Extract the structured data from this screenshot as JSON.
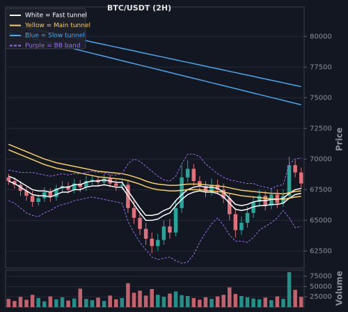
{
  "chart_data": {
    "type": "candlestick",
    "title": "BTC/USDT (2H)",
    "ylabel": "Price",
    "ylim": [
      61100,
      82400
    ],
    "yticks": [
      62500,
      65000,
      67500,
      70000,
      72500,
      75000,
      77500,
      80000
    ],
    "grid": true,
    "legend": "upper left",
    "up_color": "#26a69a",
    "down_color": "#e0707a",
    "open": [
      68500,
      68200,
      67900,
      67400,
      67000,
      66500,
      66800,
      67300,
      66900,
      67600,
      67800,
      67500,
      68000,
      67700,
      68200,
      68300,
      68100,
      68400,
      68000,
      67800,
      67900,
      66000,
      65200,
      64300,
      63500,
      62900,
      63400,
      64500,
      64000,
      66000,
      68500,
      69200,
      68200,
      67800,
      67300,
      67900,
      67500,
      66800,
      65500,
      64200,
      64800,
      65600,
      66500,
      67000,
      66200,
      67100,
      66400,
      67000,
      69500,
      68900
    ],
    "high": [
      68800,
      68500,
      68200,
      67700,
      67400,
      67100,
      67700,
      67600,
      67900,
      68200,
      68100,
      68400,
      68300,
      68600,
      68700,
      68600,
      68800,
      68700,
      68300,
      68300,
      68200,
      66600,
      65700,
      64800,
      64000,
      63900,
      65000,
      65100,
      66600,
      69500,
      69900,
      69600,
      68600,
      68200,
      68400,
      68300,
      68000,
      67200,
      66000,
      65300,
      66100,
      67000,
      67500,
      67400,
      67600,
      67500,
      67500,
      70200,
      69900,
      69300
    ],
    "low": [
      67900,
      67600,
      67000,
      66600,
      66100,
      66200,
      66500,
      66500,
      66600,
      67300,
      67200,
      67200,
      67300,
      67400,
      67900,
      67800,
      67800,
      67700,
      67400,
      67500,
      65600,
      64700,
      63800,
      63000,
      62300,
      62500,
      63000,
      63500,
      63700,
      65600,
      68100,
      67800,
      67400,
      66900,
      67000,
      67100,
      66400,
      65000,
      63600,
      63800,
      64400,
      65200,
      66100,
      65800,
      65900,
      66000,
      66100,
      66700,
      68500,
      67600
    ],
    "close": [
      68200,
      67900,
      67400,
      67000,
      66500,
      66800,
      67300,
      66900,
      67600,
      67800,
      67500,
      68000,
      67700,
      68200,
      68300,
      68100,
      68400,
      68000,
      67800,
      67900,
      66000,
      65200,
      64300,
      63500,
      62900,
      63400,
      64500,
      64000,
      66000,
      68500,
      69200,
      68200,
      67800,
      67300,
      67900,
      67500,
      66800,
      65500,
      64200,
      64800,
      65600,
      66500,
      67000,
      66200,
      67100,
      66400,
      67000,
      69500,
      68900,
      68000
    ],
    "series": [
      {
        "name": "White = Fast tunnel",
        "color": "#ffffff",
        "dash": false,
        "upper": [
          68600,
          68400,
          68100,
          67800,
          67500,
          67400,
          67400,
          67300,
          67500,
          67700,
          67700,
          67900,
          67900,
          68100,
          68200,
          68200,
          68300,
          68200,
          68100,
          68100,
          67400,
          66700,
          66000,
          65400,
          65400,
          65500,
          65800,
          66000,
          66600,
          67100,
          67500,
          67700,
          67800,
          67700,
          67700,
          67600,
          67300,
          66800,
          66300,
          66200,
          66300,
          66500,
          66600,
          66600,
          66700,
          66700,
          66800,
          67200,
          67500,
          67600
        ],
        "lower": [
          68200,
          68000,
          67700,
          67400,
          67100,
          67000,
          67000,
          66900,
          67100,
          67300,
          67300,
          67500,
          67500,
          67700,
          67800,
          67800,
          67900,
          67800,
          67700,
          67700,
          67000,
          66300,
          65600,
          65000,
          65000,
          65100,
          65400,
          65600,
          66200,
          66700,
          67100,
          67300,
          67400,
          67300,
          67300,
          67200,
          66900,
          66400,
          65900,
          65800,
          65900,
          66100,
          66200,
          66200,
          66300,
          66300,
          66400,
          66800,
          67100,
          67200
        ]
      },
      {
        "name": "Yellow = Main tunnel",
        "color": "#f5d060",
        "dash": false,
        "upper": [
          71200,
          71000,
          70800,
          70600,
          70400,
          70200,
          70000,
          69850,
          69700,
          69600,
          69500,
          69400,
          69300,
          69200,
          69100,
          69000,
          68950,
          68900,
          68850,
          68800,
          68700,
          68550,
          68400,
          68200,
          68050,
          67950,
          67900,
          67850,
          67850,
          67900,
          67950,
          67950,
          67950,
          67900,
          67850,
          67800,
          67750,
          67650,
          67550,
          67450,
          67400,
          67350,
          67300,
          67250,
          67200,
          67200,
          67150,
          67250,
          67350,
          67400
        ],
        "lower": [
          70750,
          70550,
          70350,
          70150,
          69950,
          69750,
          69550,
          69400,
          69250,
          69150,
          69050,
          68950,
          68850,
          68750,
          68650,
          68550,
          68500,
          68450,
          68400,
          68350,
          68250,
          68100,
          67950,
          67750,
          67600,
          67500,
          67450,
          67400,
          67400,
          67450,
          67500,
          67500,
          67500,
          67450,
          67400,
          67350,
          67300,
          67200,
          67100,
          67000,
          66950,
          66900,
          66850,
          66800,
          66750,
          66750,
          66700,
          66800,
          66900,
          66950
        ]
      },
      {
        "name": "Blue = Slow tunnel",
        "color": "#4aa8f0",
        "dash": false,
        "upper": [
          81000,
          80900,
          80790,
          80690,
          80580,
          80480,
          80380,
          80270,
          80170,
          80060,
          79960,
          79860,
          79750,
          79650,
          79540,
          79440,
          79340,
          79230,
          79130,
          79020,
          78920,
          78820,
          78710,
          78610,
          78500,
          78400,
          78300,
          78190,
          78090,
          77980,
          77880,
          77780,
          77670,
          77570,
          77460,
          77360,
          77260,
          77150,
          77050,
          76940,
          76840,
          76740,
          76630,
          76530,
          76420,
          76320,
          76220,
          76110,
          76010,
          75900
        ],
        "lower": [
          80300,
          80180,
          80060,
          79940,
          79820,
          79700,
          79580,
          79460,
          79340,
          79220,
          79100,
          78980,
          78860,
          78740,
          78620,
          78500,
          78380,
          78260,
          78140,
          78020,
          77900,
          77780,
          77660,
          77540,
          77420,
          77300,
          77180,
          77060,
          76940,
          76820,
          76700,
          76580,
          76460,
          76340,
          76220,
          76100,
          75980,
          75860,
          75740,
          75620,
          75500,
          75380,
          75260,
          75140,
          75020,
          74900,
          74780,
          74660,
          74540,
          74420
        ]
      },
      {
        "name": "Purple = BB band",
        "color": "#9b6cf0",
        "dash": true,
        "upper": [
          69100,
          69000,
          68900,
          68900,
          68900,
          68800,
          68700,
          68600,
          68700,
          68800,
          68700,
          68800,
          68800,
          68900,
          69000,
          68900,
          68900,
          68700,
          68700,
          68800,
          69600,
          70000,
          69800,
          69400,
          69000,
          68600,
          68300,
          68200,
          68600,
          69600,
          70400,
          70400,
          70200,
          69600,
          69200,
          68800,
          68500,
          68300,
          68200,
          68100,
          68000,
          68000,
          67800,
          67700,
          67600,
          67800,
          67900,
          69600,
          70000,
          70100
        ],
        "lower": [
          66600,
          66400,
          66000,
          65600,
          65400,
          65300,
          65600,
          65800,
          66100,
          66300,
          66400,
          66600,
          66700,
          66800,
          66900,
          66800,
          66700,
          66600,
          66500,
          66400,
          64900,
          64000,
          63200,
          62600,
          62000,
          61800,
          61900,
          62000,
          61700,
          61500,
          61600,
          62200,
          63200,
          64000,
          64700,
          65200,
          64600,
          63800,
          63300,
          63300,
          63200,
          63600,
          64200,
          64500,
          64800,
          65200,
          65800,
          65200,
          64400,
          64500
        ]
      }
    ],
    "volume": {
      "ylabel": "Volume",
      "ylim": [
        0,
        88000
      ],
      "yticks": [
        25000,
        50000,
        75000
      ],
      "values": [
        20000,
        15000,
        25000,
        18000,
        30000,
        22000,
        14000,
        26000,
        19000,
        24000,
        16000,
        21000,
        45000,
        20000,
        17000,
        23000,
        15000,
        28000,
        19000,
        22000,
        58000,
        35000,
        40000,
        28000,
        44000,
        30000,
        25000,
        33000,
        38000,
        29000,
        27000,
        22000,
        18000,
        24000,
        20000,
        26000,
        30000,
        48000,
        32000,
        27000,
        24000,
        21000,
        19000,
        23000,
        17000,
        26000,
        20000,
        85000,
        42000,
        25000
      ]
    }
  }
}
